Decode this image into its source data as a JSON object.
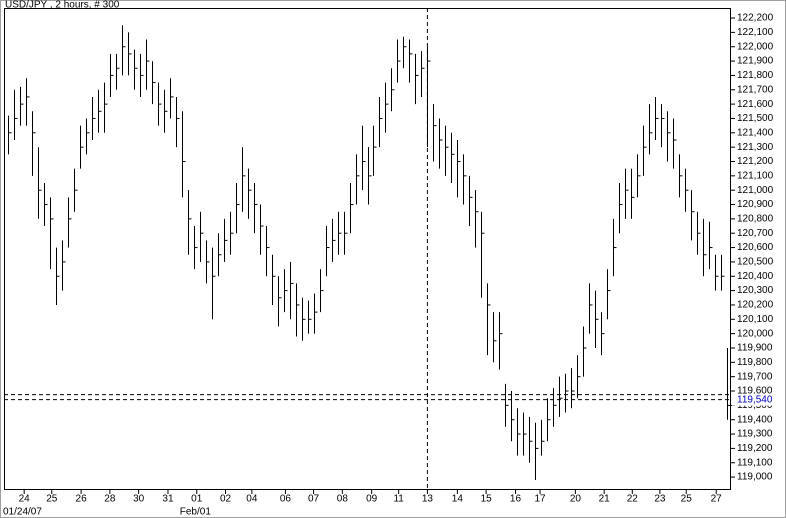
{
  "chart_data": {
    "type": "ohlc",
    "title": "USD/JPY , 2 hours, # 300",
    "xlim": [
      -0.67,
      120.67
    ],
    "ylim": [
      118910,
      122270
    ],
    "xticks": [
      {
        "value": 2.7,
        "label": "24"
      },
      {
        "value": 7.3,
        "label": "25"
      },
      {
        "value": 12.2,
        "label": "26"
      },
      {
        "value": 17,
        "label": "28"
      },
      {
        "value": 21.8,
        "label": "30"
      },
      {
        "value": 26.7,
        "label": "31"
      },
      {
        "value": 31.5,
        "label": "01"
      },
      {
        "value": 36.3,
        "label": "02"
      },
      {
        "value": 40.7,
        "label": "04"
      },
      {
        "value": 46.3,
        "label": "06"
      },
      {
        "value": 51,
        "label": "07"
      },
      {
        "value": 55.8,
        "label": "08"
      },
      {
        "value": 60.7,
        "label": "09"
      },
      {
        "value": 65.2,
        "label": "11"
      },
      {
        "value": 70,
        "label": "13"
      },
      {
        "value": 75,
        "label": "14"
      },
      {
        "value": 79.8,
        "label": "15"
      },
      {
        "value": 84.7,
        "label": "16"
      },
      {
        "value": 88.8,
        "label": "17"
      },
      {
        "value": 94.7,
        "label": "20"
      },
      {
        "value": 99.5,
        "label": "21"
      },
      {
        "value": 104.2,
        "label": "22"
      },
      {
        "value": 108.8,
        "label": "23"
      },
      {
        "value": 113.2,
        "label": "25"
      },
      {
        "value": 118.2,
        "label": "27"
      }
    ],
    "xsublabels": [
      {
        "value": 0,
        "label": "01/24/07"
      },
      {
        "value": 29.5,
        "label": "Feb/01"
      }
    ],
    "yticks": [
      {
        "value": 122200,
        "label": "122,200"
      },
      {
        "value": 122100,
        "label": "122,100"
      },
      {
        "value": 122000,
        "label": "122,000"
      },
      {
        "value": 121900,
        "label": "121,900"
      },
      {
        "value": 121800,
        "label": "121,800"
      },
      {
        "value": 121700,
        "label": "121,700"
      },
      {
        "value": 121600,
        "label": "121,600"
      },
      {
        "value": 121500,
        "label": "121,500"
      },
      {
        "value": 121400,
        "label": "121,400"
      },
      {
        "value": 121300,
        "label": "121,300"
      },
      {
        "value": 121200,
        "label": "121,200"
      },
      {
        "value": 121100,
        "label": "121,100"
      },
      {
        "value": 121000,
        "label": "121,000"
      },
      {
        "value": 120900,
        "label": "120,900"
      },
      {
        "value": 120800,
        "label": "120,800"
      },
      {
        "value": 120700,
        "label": "120,700"
      },
      {
        "value": 120600,
        "label": "120,600"
      },
      {
        "value": 120500,
        "label": "120,500"
      },
      {
        "value": 120400,
        "label": "120,400"
      },
      {
        "value": 120300,
        "label": "120,300"
      },
      {
        "value": 120200,
        "label": "120,200"
      },
      {
        "value": 120100,
        "label": "120,100"
      },
      {
        "value": 120000,
        "label": "120,000"
      },
      {
        "value": 119900,
        "label": "119,900"
      },
      {
        "value": 119800,
        "label": "119,800"
      },
      {
        "value": 119700,
        "label": "119,700"
      },
      {
        "value": 119600,
        "label": "119,600"
      },
      {
        "value": 119500,
        "label": "119,500"
      },
      {
        "value": 119400,
        "label": "119,400"
      },
      {
        "value": 119300,
        "label": "119,300"
      },
      {
        "value": 119200,
        "label": "119,200"
      },
      {
        "value": 119100,
        "label": "119,100"
      },
      {
        "value": 119000,
        "label": "119,000"
      }
    ],
    "price_lines": [
      119575,
      {
        "value": 119540,
        "label": "119,540"
      }
    ],
    "price_label_color": "#0000c0",
    "crosshair_x": 70,
    "color": "#000000",
    "high": [
      121520,
      121700,
      121720,
      121780,
      121550,
      121300,
      121050,
      120950,
      120600,
      120650,
      120950,
      121150,
      121450,
      121500,
      121650,
      121700,
      121750,
      121950,
      121950,
      122150,
      122100,
      121980,
      121950,
      122050,
      121900,
      121750,
      121700,
      121780,
      121650,
      121550,
      121000,
      120750,
      120850,
      120650,
      120600,
      120700,
      120800,
      120850,
      121050,
      121300,
      121150,
      121050,
      120900,
      120750,
      120550,
      120400,
      120450,
      120500,
      120350,
      120250,
      120230,
      120280,
      120450,
      120750,
      120800,
      120850,
      120850,
      121050,
      121250,
      121450,
      121300,
      121450,
      121650,
      121750,
      121850,
      122050,
      122070,
      122050,
      121950,
      121970,
      122000,
      121600,
      121500,
      121450,
      121400,
      121350,
      121250,
      121100,
      121000,
      120850,
      120350,
      120150,
      120150,
      119650,
      119600,
      119480,
      119450,
      119420,
      119380,
      119400,
      119550,
      119620,
      119700,
      119720,
      119760,
      119850,
      120050,
      120350,
      120300,
      120150,
      120450,
      120800,
      121050,
      121150,
      121150,
      121250,
      121450,
      121600,
      121650,
      121600,
      121550,
      121500,
      121250,
      121150,
      121000,
      120850,
      120800,
      120780,
      120550,
      120550,
      119900
    ],
    "low": [
      121250,
      121350,
      121450,
      121450,
      121100,
      120800,
      120750,
      120450,
      120200,
      120300,
      120600,
      120850,
      121150,
      121250,
      121350,
      121400,
      121400,
      121650,
      121700,
      121800,
      121800,
      121700,
      121650,
      121700,
      121600,
      121450,
      121400,
      121500,
      121300,
      120950,
      120550,
      120450,
      120500,
      120350,
      120100,
      120400,
      120500,
      120550,
      120700,
      120850,
      120800,
      120700,
      120550,
      120400,
      120200,
      120050,
      120150,
      120100,
      119980,
      119950,
      120000,
      120000,
      120150,
      120400,
      120500,
      120550,
      120550,
      120700,
      120900,
      121000,
      120900,
      121100,
      121300,
      121400,
      121550,
      121750,
      121850,
      121750,
      121600,
      121650,
      121300,
      121200,
      121150,
      121100,
      121050,
      120950,
      120900,
      120750,
      120600,
      120250,
      119850,
      119800,
      119750,
      119350,
      119250,
      119150,
      119150,
      119100,
      118980,
      119150,
      119250,
      119350,
      119420,
      119450,
      119480,
      119550,
      119700,
      120000,
      119900,
      119850,
      120100,
      120400,
      120700,
      120800,
      120800,
      120950,
      121100,
      121250,
      121350,
      121300,
      121200,
      121150,
      120950,
      120850,
      120650,
      120550,
      120400,
      120450,
      120300,
      120300,
      119400
    ],
    "close": [
      121400,
      121500,
      121600,
      121650,
      121400,
      121000,
      120900,
      120800,
      120400,
      120500,
      120800,
      121000,
      121300,
      121400,
      121500,
      121550,
      121600,
      121800,
      121850,
      122000,
      121950,
      121850,
      121800,
      121900,
      121750,
      121600,
      121550,
      121650,
      121500,
      121200,
      120800,
      120600,
      120700,
      120500,
      120400,
      120550,
      120650,
      120700,
      120900,
      121100,
      121000,
      120900,
      120750,
      120600,
      120400,
      120250,
      120300,
      120350,
      120200,
      120100,
      120100,
      120150,
      120300,
      120600,
      120650,
      120700,
      120700,
      120900,
      121100,
      121200,
      121100,
      121300,
      121500,
      121600,
      121700,
      121900,
      122000,
      121950,
      121800,
      121850,
      121900,
      121450,
      121350,
      121300,
      121250,
      121200,
      121100,
      120950,
      120850,
      120700,
      120200,
      119950,
      120000,
      119500,
      119400,
      119300,
      119300,
      119250,
      119200,
      119250,
      119400,
      119500,
      119550,
      119600,
      119600,
      119700,
      119900,
      120200,
      120100,
      120000,
      120300,
      120600,
      120900,
      121000,
      120950,
      121100,
      121300,
      121400,
      121500,
      121500,
      121400,
      121350,
      121100,
      121000,
      120850,
      120700,
      120550,
      120600,
      120400,
      120400,
      119500
    ]
  }
}
